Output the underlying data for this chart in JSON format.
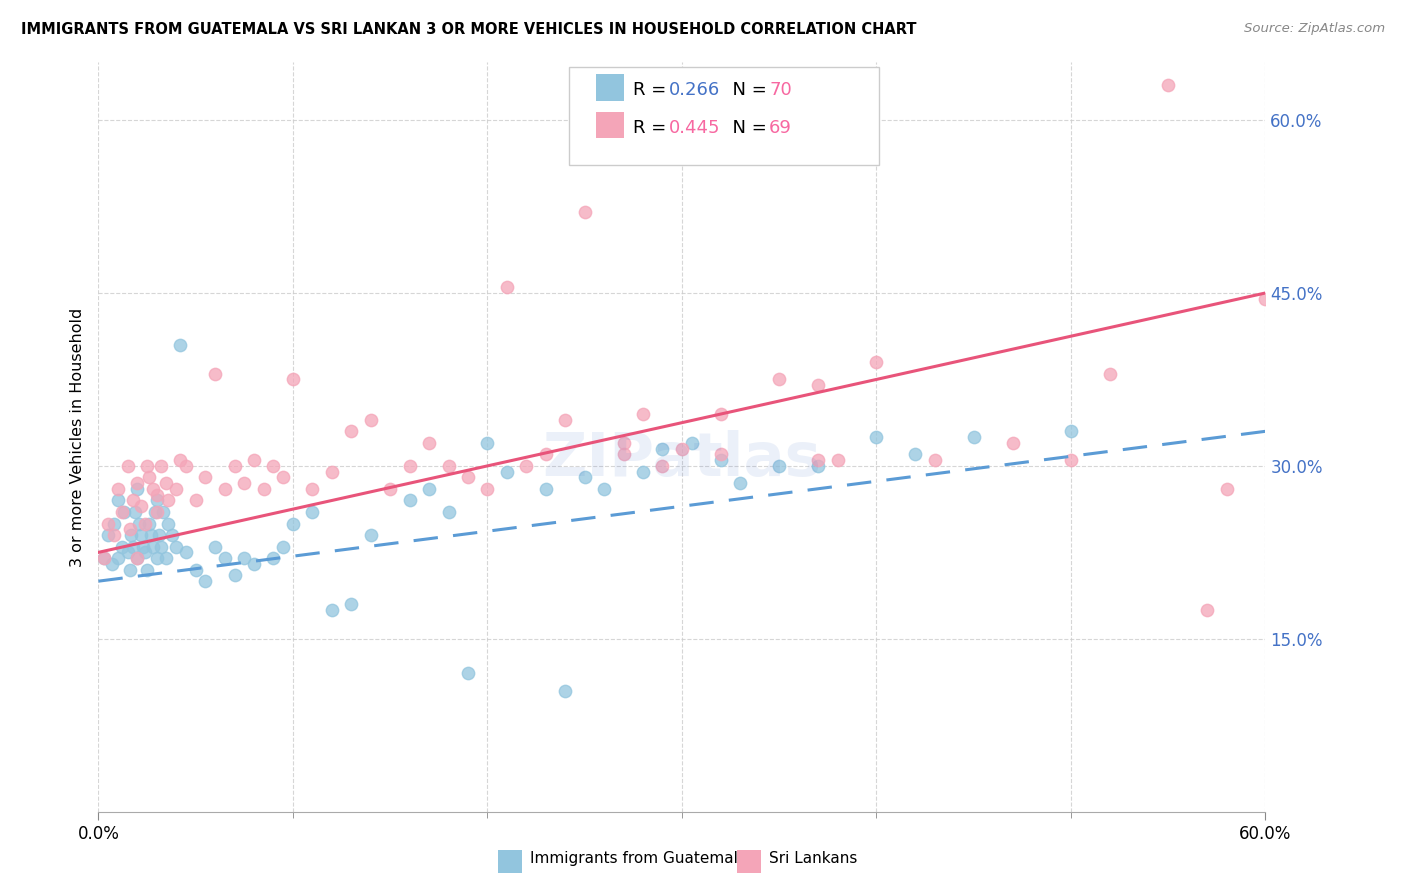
{
  "title": "IMMIGRANTS FROM GUATEMALA VS SRI LANKAN 3 OR MORE VEHICLES IN HOUSEHOLD CORRELATION CHART",
  "source": "Source: ZipAtlas.com",
  "ylabel": "3 or more Vehicles in Household",
  "xlim": [
    0.0,
    60.0
  ],
  "ylim": [
    0.0,
    65.0
  ],
  "yticks": [
    15.0,
    30.0,
    45.0,
    60.0
  ],
  "xticks_minor": [
    10,
    20,
    30,
    40,
    50
  ],
  "blue_R": 0.266,
  "blue_N": 70,
  "pink_R": 0.445,
  "pink_N": 69,
  "blue_color": "#92c5de",
  "pink_color": "#f4a5b8",
  "blue_line_color": "#5b9bd5",
  "pink_line_color": "#e8547a",
  "legend_label_blue": "Immigrants from Guatemala",
  "legend_label_pink": "Sri Lankans",
  "blue_line_x0": 0.0,
  "blue_line_y0": 20.0,
  "blue_line_x1": 60.0,
  "blue_line_y1": 33.0,
  "pink_line_x0": 0.0,
  "pink_line_y0": 22.5,
  "pink_line_x1": 60.0,
  "pink_line_y1": 45.0,
  "blue_scatter_x": [
    0.3,
    0.5,
    0.7,
    0.8,
    1.0,
    1.0,
    1.2,
    1.3,
    1.5,
    1.6,
    1.7,
    1.8,
    1.9,
    2.0,
    2.0,
    2.1,
    2.2,
    2.3,
    2.4,
    2.5,
    2.6,
    2.7,
    2.8,
    2.9,
    3.0,
    3.0,
    3.1,
    3.2,
    3.3,
    3.5,
    3.6,
    3.8,
    4.0,
    4.2,
    4.5,
    5.0,
    5.5,
    6.0,
    6.5,
    7.0,
    7.5,
    8.0,
    9.0,
    9.5,
    10.0,
    11.0,
    12.0,
    13.0,
    14.0,
    16.0,
    17.0,
    18.0,
    19.0,
    20.0,
    21.0,
    23.0,
    24.0,
    25.0,
    26.0,
    28.0,
    29.0,
    30.5,
    32.0,
    33.0,
    35.0,
    37.0,
    40.0,
    42.0,
    45.0,
    50.0
  ],
  "blue_scatter_y": [
    22.0,
    24.0,
    21.5,
    25.0,
    22.0,
    27.0,
    23.0,
    26.0,
    22.5,
    21.0,
    24.0,
    23.0,
    26.0,
    22.0,
    28.0,
    25.0,
    24.0,
    23.0,
    22.5,
    21.0,
    25.0,
    24.0,
    23.0,
    26.0,
    22.0,
    27.0,
    24.0,
    23.0,
    26.0,
    22.0,
    25.0,
    24.0,
    23.0,
    40.5,
    22.5,
    21.0,
    20.0,
    23.0,
    22.0,
    20.5,
    22.0,
    21.5,
    22.0,
    23.0,
    25.0,
    26.0,
    17.5,
    18.0,
    24.0,
    27.0,
    28.0,
    26.0,
    12.0,
    32.0,
    29.5,
    28.0,
    10.5,
    29.0,
    28.0,
    29.5,
    31.5,
    32.0,
    30.5,
    28.5,
    30.0,
    30.0,
    32.5,
    31.0,
    32.5,
    33.0
  ],
  "pink_scatter_x": [
    0.3,
    0.5,
    0.8,
    1.0,
    1.2,
    1.5,
    1.6,
    1.8,
    2.0,
    2.0,
    2.2,
    2.4,
    2.5,
    2.6,
    2.8,
    3.0,
    3.0,
    3.2,
    3.5,
    3.6,
    4.0,
    4.2,
    4.5,
    5.0,
    5.5,
    6.0,
    6.5,
    7.0,
    7.5,
    8.0,
    8.5,
    9.0,
    9.5,
    10.0,
    11.0,
    12.0,
    13.0,
    14.0,
    15.0,
    16.0,
    17.0,
    18.0,
    19.0,
    20.0,
    21.0,
    22.0,
    23.0,
    24.0,
    25.0,
    27.0,
    28.0,
    29.0,
    30.0,
    32.0,
    35.0,
    37.0,
    38.0,
    40.0,
    43.0,
    47.0,
    50.0,
    52.0,
    55.0,
    57.0,
    58.0,
    60.0,
    27.0,
    32.0,
    37.0
  ],
  "pink_scatter_y": [
    22.0,
    25.0,
    24.0,
    28.0,
    26.0,
    30.0,
    24.5,
    27.0,
    28.5,
    22.0,
    26.5,
    25.0,
    30.0,
    29.0,
    28.0,
    27.5,
    26.0,
    30.0,
    28.5,
    27.0,
    28.0,
    30.5,
    30.0,
    27.0,
    29.0,
    38.0,
    28.0,
    30.0,
    28.5,
    30.5,
    28.0,
    30.0,
    29.0,
    37.5,
    28.0,
    29.5,
    33.0,
    34.0,
    28.0,
    30.0,
    32.0,
    30.0,
    29.0,
    28.0,
    45.5,
    30.0,
    31.0,
    34.0,
    52.0,
    31.0,
    34.5,
    30.0,
    31.5,
    31.0,
    37.5,
    30.5,
    30.5,
    39.0,
    30.5,
    32.0,
    30.5,
    38.0,
    63.0,
    17.5,
    28.0,
    44.5,
    32.0,
    34.5,
    37.0
  ]
}
